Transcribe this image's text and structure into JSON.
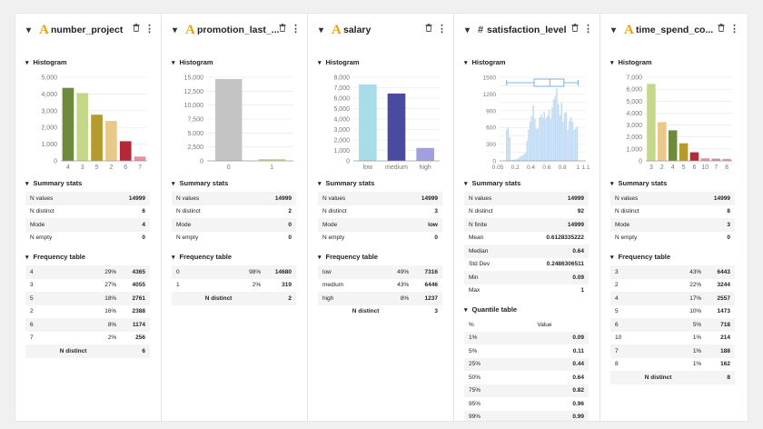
{
  "columns": [
    {
      "id": "number_project",
      "name": "number_project",
      "type": "categorical",
      "type_icon": "A",
      "histogram_label": "Histogram",
      "chart_data": {
        "type": "bar",
        "categories": [
          "4",
          "3",
          "5",
          "2",
          "6",
          "7"
        ],
        "values": [
          4365,
          4055,
          2761,
          2388,
          1174,
          256
        ],
        "ylim": [
          0,
          5000
        ],
        "yticks": [
          "0",
          "1,000",
          "2,000",
          "3,000",
          "4,000",
          "5,000"
        ],
        "colors": [
          "#6e8b3d",
          "#c5d88a",
          "#b59a2e",
          "#e8c98a",
          "#b5283a",
          "#e8909c"
        ],
        "grid": true
      },
      "summary_label": "Summary stats",
      "summary": [
        [
          "N values",
          "14999"
        ],
        [
          "N distinct",
          "6"
        ],
        [
          "Mode",
          "4"
        ],
        [
          "N empty",
          "0"
        ]
      ],
      "freq_label": "Frequency table",
      "freq": [
        [
          "4",
          "29%",
          "4365"
        ],
        [
          "3",
          "27%",
          "4055"
        ],
        [
          "5",
          "18%",
          "2761"
        ],
        [
          "2",
          "16%",
          "2388"
        ],
        [
          "6",
          "8%",
          "1174"
        ],
        [
          "7",
          "2%",
          "256"
        ]
      ],
      "distinct_label": "N distinct",
      "distinct": "6"
    },
    {
      "id": "promotion_last",
      "name": "promotion_last_...",
      "type": "categorical",
      "type_icon": "A",
      "histogram_label": "Histogram",
      "chart_data": {
        "type": "bar",
        "categories": [
          "0",
          "1"
        ],
        "values": [
          14680,
          319
        ],
        "ylim": [
          0,
          15000
        ],
        "yticks": [
          "0",
          "2,500",
          "5,000",
          "7,500",
          "10,000",
          "12,500",
          "15,000"
        ],
        "colors": [
          "#c4c4c4",
          "#c5d88a"
        ],
        "grid": true
      },
      "summary_label": "Summary stats",
      "summary": [
        [
          "N values",
          "14999"
        ],
        [
          "N distinct",
          "2"
        ],
        [
          "Mode",
          "0"
        ],
        [
          "N empty",
          "0"
        ]
      ],
      "freq_label": "Frequency table",
      "freq": [
        [
          "0",
          "98%",
          "14680"
        ],
        [
          "1",
          "2%",
          "319"
        ]
      ],
      "distinct_label": "N distinct",
      "distinct": "2"
    },
    {
      "id": "salary",
      "name": "salary",
      "type": "categorical",
      "type_icon": "A",
      "histogram_label": "Histogram",
      "chart_data": {
        "type": "bar",
        "categories": [
          "low",
          "medium",
          "high"
        ],
        "values": [
          7316,
          6446,
          1237
        ],
        "ylim": [
          0,
          8000
        ],
        "yticks": [
          "0",
          "1,000",
          "2,000",
          "3,000",
          "4,000",
          "5,000",
          "6,000",
          "7,000",
          "8,000"
        ],
        "colors": [
          "#a8dce8",
          "#4a4aa0",
          "#a0a0e0"
        ],
        "grid": true
      },
      "summary_label": "Summary stats",
      "summary": [
        [
          "N values",
          "14999"
        ],
        [
          "N distinct",
          "3"
        ],
        [
          "Mode",
          "low"
        ],
        [
          "N empty",
          "0"
        ]
      ],
      "freq_label": "Frequency table",
      "freq": [
        [
          "low",
          "49%",
          "7316"
        ],
        [
          "medium",
          "43%",
          "6446"
        ],
        [
          "high",
          "8%",
          "1237"
        ]
      ],
      "distinct_label": "N distinct",
      "distinct": "3"
    },
    {
      "id": "satisfaction_level",
      "name": "satisfaction_level",
      "type": "numeric",
      "type_icon": "#",
      "histogram_label": "Histogram",
      "chart_data": {
        "type": "histogram",
        "x": [
          0.09,
          0.11,
          0.13,
          0.15,
          0.17,
          0.19,
          0.21,
          0.23,
          0.25,
          0.27,
          0.29,
          0.31,
          0.33,
          0.35,
          0.37,
          0.39,
          0.41,
          0.43,
          0.45,
          0.47,
          0.49,
          0.51,
          0.53,
          0.55,
          0.57,
          0.59,
          0.61,
          0.63,
          0.65,
          0.67,
          0.69,
          0.71,
          0.73,
          0.75,
          0.77,
          0.79,
          0.81,
          0.83,
          0.85,
          0.87,
          0.89,
          0.91,
          0.93,
          0.95,
          0.97,
          0.99
        ],
        "values": [
          560,
          600,
          430,
          20,
          20,
          20,
          30,
          40,
          60,
          80,
          100,
          120,
          150,
          360,
          560,
          700,
          800,
          1000,
          760,
          580,
          580,
          780,
          840,
          780,
          880,
          760,
          800,
          920,
          760,
          960,
          1100,
          1160,
          1300,
          1020,
          820,
          1040,
          700,
          860,
          880,
          560,
          720,
          780,
          700,
          560,
          580,
          620
        ],
        "xlim": [
          0,
          1.1
        ],
        "ylim": [
          0,
          1500
        ],
        "xticks": [
          [
            "0",
            "0.05",
            0
          ],
          [
            "0.2",
            "0.2",
            0.2
          ],
          [
            "0.4",
            "0.4",
            0.4
          ],
          [
            "0.6",
            "0.6",
            0.6
          ],
          [
            "0.8",
            "0.8",
            0.8
          ],
          [
            "1",
            "1",
            1.0
          ],
          [
            "1.1",
            "1.1",
            1.1
          ]
        ],
        "yticks": [
          "0",
          "150",
          "300",
          "450",
          "600",
          "750",
          "900",
          "1050",
          "1200",
          "1350",
          "1500"
        ],
        "ytick_values": [
          0,
          150,
          300,
          450,
          600,
          750,
          900,
          1050,
          1200,
          1350,
          1500
        ],
        "ytick_labels_shown": [
          "0",
          "150",
          "300",
          "450",
          "600",
          "750",
          "900",
          "1050",
          "1200",
          "1350",
          "1500"
        ],
        "boxplot": {
          "min": 0.09,
          "q1": 0.44,
          "median": 0.64,
          "q3": 0.82,
          "max": 1
        },
        "color": "#c2dcf7",
        "grid": true
      },
      "summary_label": "Summary stats",
      "summary": [
        [
          "N values",
          "14999"
        ],
        [
          "N distinct",
          "92"
        ],
        [
          "N finite",
          "14999"
        ],
        [
          "Mean",
          "0.6128335222"
        ],
        [
          "Median",
          "0.64"
        ],
        [
          "Std Dev",
          "0.2486306511"
        ],
        [
          "Min",
          "0.09"
        ],
        [
          "Max",
          "1"
        ]
      ],
      "quantile_label": "Quantile table",
      "quantile_headers": [
        "%",
        "Value"
      ],
      "quantiles": [
        [
          "1%",
          "0.09"
        ],
        [
          "5%",
          "0.11"
        ],
        [
          "25%",
          "0.44"
        ],
        [
          "50%",
          "0.64"
        ],
        [
          "75%",
          "0.82"
        ],
        [
          "95%",
          "0.96"
        ],
        [
          "99%",
          "0.99"
        ]
      ]
    },
    {
      "id": "time_spend",
      "name": "time_spend_co...",
      "type": "categorical",
      "type_icon": "A",
      "histogram_label": "Histogram",
      "chart_data": {
        "type": "bar",
        "categories": [
          "3",
          "2",
          "4",
          "5",
          "6",
          "10",
          "7",
          "8"
        ],
        "values": [
          6443,
          3244,
          2557,
          1473,
          718,
          214,
          188,
          162
        ],
        "ylim": [
          0,
          7000
        ],
        "yticks": [
          "0",
          "1,000",
          "2,000",
          "3,000",
          "4,000",
          "5,000",
          "6,000",
          "7,000"
        ],
        "colors": [
          "#c5d88a",
          "#e8c98a",
          "#6e8b3d",
          "#b59a2e",
          "#b5283a",
          "#e8909c",
          "#c890b0",
          "#e8909c"
        ],
        "grid": true
      },
      "summary_label": "Summary stats",
      "summary": [
        [
          "N values",
          "14999"
        ],
        [
          "N distinct",
          "8"
        ],
        [
          "Mode",
          "3"
        ],
        [
          "N empty",
          "0"
        ]
      ],
      "freq_label": "Frequency table",
      "freq": [
        [
          "3",
          "43%",
          "6443"
        ],
        [
          "2",
          "22%",
          "3244"
        ],
        [
          "4",
          "17%",
          "2557"
        ],
        [
          "5",
          "10%",
          "1473"
        ],
        [
          "6",
          "5%",
          "718"
        ],
        [
          "10",
          "1%",
          "214"
        ],
        [
          "7",
          "1%",
          "188"
        ],
        [
          "8",
          "1%",
          "162"
        ]
      ],
      "distinct_label": "N distinct",
      "distinct": "8"
    }
  ]
}
